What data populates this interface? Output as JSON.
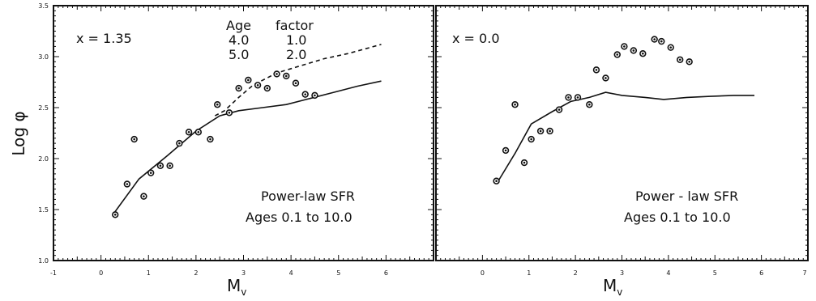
{
  "chart_data": [
    {
      "type": "scatter",
      "title": "",
      "xlabel": "M",
      "xlabel_subscript": "v",
      "ylabel": "Log φ",
      "xlim": [
        -1,
        7
      ],
      "ylim": [
        1.0,
        3.5
      ],
      "x_ticks": [
        "-1",
        "0",
        "1",
        "2",
        "3",
        "4",
        "5",
        "6"
      ],
      "y_ticks": [
        "1.0",
        "1.5",
        "2.0",
        "2.5",
        "3.0",
        "3.5"
      ],
      "annotations": [
        "x = 1.35",
        "Power-law SFR",
        "Ages  0.1  to  10.0"
      ],
      "table_header": [
        "Age",
        "factor"
      ],
      "table_rows": [
        [
          "4.0",
          "1.0"
        ],
        [
          "5.0",
          "2.0"
        ]
      ],
      "observed_points": {
        "x": [
          0.3,
          0.55,
          0.7,
          0.9,
          1.05,
          1.25,
          1.45,
          1.65,
          1.85,
          2.05,
          2.3,
          2.45,
          2.7,
          2.9,
          3.1,
          3.3,
          3.5,
          3.7,
          3.9,
          4.1,
          4.3,
          4.5
        ],
        "y": [
          1.45,
          1.75,
          2.19,
          1.63,
          1.86,
          1.93,
          1.93,
          2.15,
          2.26,
          2.26,
          2.19,
          2.53,
          2.45,
          2.69,
          2.77,
          2.72,
          2.69,
          2.83,
          2.81,
          2.74,
          2.63,
          2.62
        ]
      },
      "series": [
        {
          "style": "solid",
          "x": [
            0.25,
            0.8,
            1.4,
            2.0,
            2.5,
            2.9,
            3.4,
            3.9,
            4.4,
            4.9,
            5.4,
            5.9
          ],
          "y": [
            1.45,
            1.8,
            2.03,
            2.27,
            2.42,
            2.47,
            2.5,
            2.53,
            2.59,
            2.65,
            2.71,
            2.76
          ]
        },
        {
          "style": "dashed",
          "x": [
            2.4,
            2.6,
            2.9,
            3.2,
            3.7,
            4.2,
            4.7,
            5.2,
            5.9
          ],
          "y": [
            2.42,
            2.47,
            2.6,
            2.72,
            2.84,
            2.91,
            2.98,
            3.03,
            3.12
          ]
        }
      ]
    },
    {
      "type": "scatter",
      "title": "",
      "xlabel": "M",
      "xlabel_subscript": "v",
      "ylabel": "",
      "xlim": [
        -1,
        7
      ],
      "ylim": [
        1.0,
        3.5
      ],
      "x_ticks": [
        "0",
        "1",
        "2",
        "3",
        "4",
        "5",
        "6",
        "7"
      ],
      "y_ticks": [],
      "annotations": [
        "x = 0.0",
        "Power - law  SFR",
        "Ages  0.1  to  10.0"
      ],
      "observed_points": {
        "x": [
          0.3,
          0.5,
          0.7,
          0.9,
          1.05,
          1.25,
          1.45,
          1.65,
          1.85,
          2.05,
          2.3,
          2.45,
          2.65,
          2.9,
          3.05,
          3.25,
          3.45,
          3.7,
          3.85,
          4.05,
          4.25,
          4.45
        ],
        "y": [
          1.78,
          2.08,
          2.53,
          1.96,
          2.19,
          2.27,
          2.27,
          2.48,
          2.6,
          2.6,
          2.53,
          2.87,
          2.79,
          3.02,
          3.1,
          3.06,
          3.03,
          3.17,
          3.15,
          3.09,
          2.97,
          2.95
        ]
      },
      "series": [
        {
          "style": "solid",
          "x": [
            0.3,
            0.7,
            1.05,
            1.5,
            1.9,
            2.3,
            2.65,
            3.0,
            3.5,
            3.9,
            4.4,
            4.9,
            5.4,
            5.85
          ],
          "y": [
            1.75,
            2.05,
            2.34,
            2.46,
            2.56,
            2.6,
            2.65,
            2.62,
            2.6,
            2.58,
            2.6,
            2.61,
            2.62,
            2.62
          ]
        }
      ]
    }
  ]
}
